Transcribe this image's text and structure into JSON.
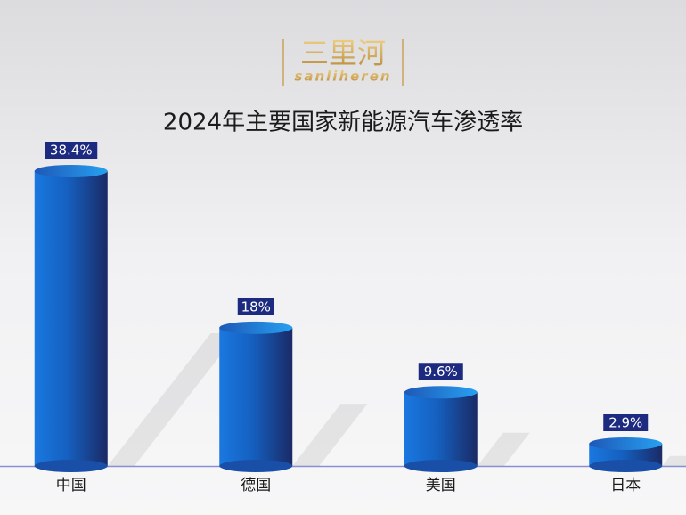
{
  "chart_data": {
    "type": "bar",
    "logo": {
      "name": "三里河",
      "subtitle": "sanliheren"
    },
    "title": "2024年主要国家新能源汽车渗透率",
    "categories": [
      "中国",
      "德国",
      "美国",
      "日本"
    ],
    "values": [
      38.4,
      18,
      9.6,
      2.9
    ],
    "value_labels": [
      "38.4%",
      "18%",
      "9.6%",
      "2.9%"
    ],
    "color": "#1a6fd0"
  }
}
